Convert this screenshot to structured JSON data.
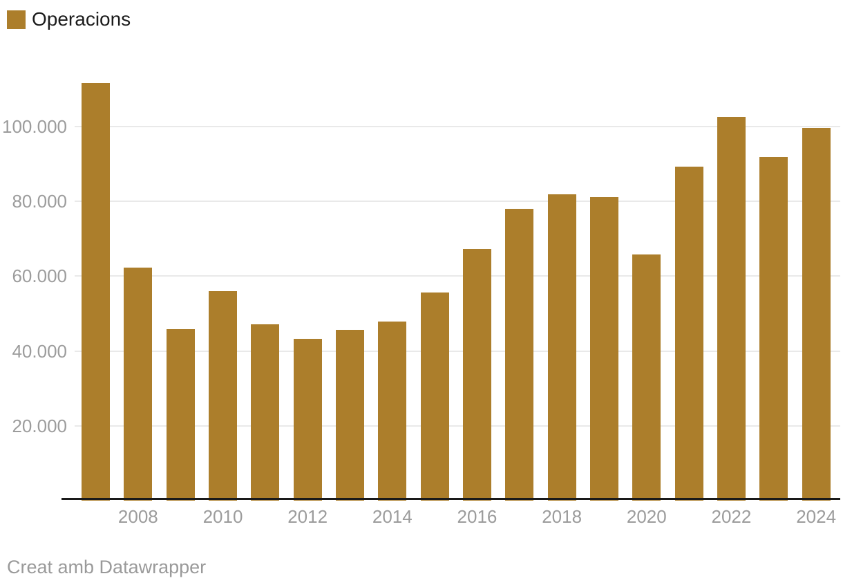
{
  "legend": {
    "label": "Operacions",
    "swatch_color": "#AC7E2B"
  },
  "footer": {
    "text": "Creat amb Datawrapper"
  },
  "chart_data": {
    "type": "bar",
    "series_name": "Operacions",
    "categories": [
      "2007",
      "2008",
      "2009",
      "2010",
      "2011",
      "2012",
      "2013",
      "2014",
      "2015",
      "2016",
      "2017",
      "2018",
      "2019",
      "2020",
      "2021",
      "2022",
      "2023",
      "2024"
    ],
    "values": [
      111600,
      62300,
      45800,
      56000,
      47200,
      43200,
      45600,
      47900,
      55600,
      67200,
      78000,
      81800,
      81100,
      65800,
      89300,
      102600,
      91900,
      99600
    ],
    "y_ticks": [
      20000,
      40000,
      60000,
      80000,
      100000
    ],
    "y_tick_labels": [
      "20.000",
      "40.000",
      "60.000",
      "80.000",
      "100.000"
    ],
    "x_tick_labels": [
      "2008",
      "2010",
      "2012",
      "2014",
      "2016",
      "2018",
      "2020",
      "2022",
      "2024"
    ],
    "ylim": [
      0,
      112000
    ],
    "grid": true,
    "legend_position": "top-left",
    "bar_color": "#AC7E2B",
    "gridline_color": "#E9E9E9",
    "axis_line_color": "#1A1A1A",
    "tick_label_color": "#9C9C9C"
  }
}
